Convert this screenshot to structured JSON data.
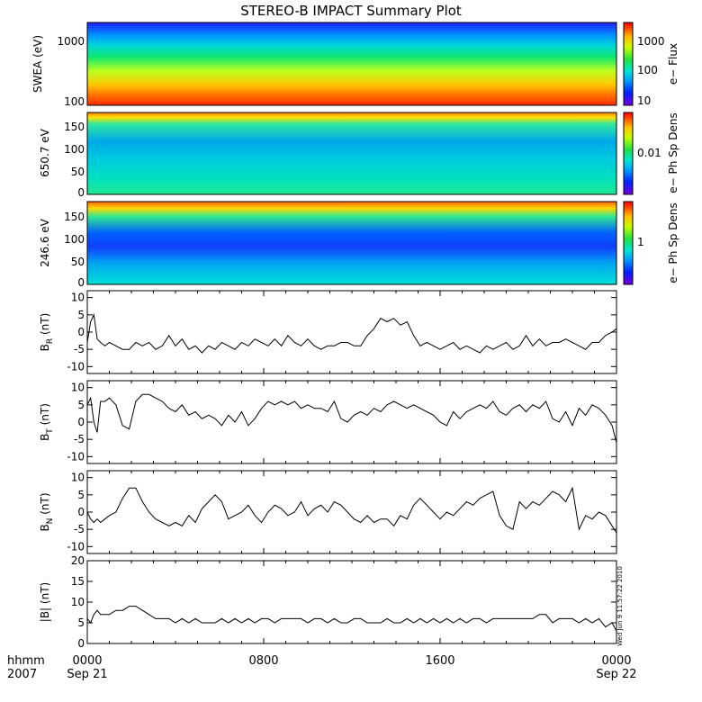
{
  "title": "STEREO-B IMPACT Summary Plot",
  "timestamp": "Wed Jun 9 11:57:22 2010",
  "time_axis": {
    "row1_label": "hhmm",
    "row2_label": "2007",
    "ticks": [
      {
        "hhmm": "0000",
        "date": "Sep 21"
      },
      {
        "hhmm": "0800",
        "date": ""
      },
      {
        "hhmm": "1600",
        "date": ""
      },
      {
        "hhmm": "0000",
        "date": "Sep 22"
      }
    ]
  },
  "chart_data": [
    {
      "type": "heatmap",
      "ylabel": "SWEA (eV)",
      "yscale": "log",
      "ylim": [
        100,
        2000
      ],
      "yticks": [
        "1000",
        "100"
      ],
      "colorbar": {
        "label": "e− Flux",
        "scale": "log",
        "ticks": [
          "1000",
          "100",
          "10"
        ]
      }
    },
    {
      "type": "heatmap",
      "ylabel": "650.7 eV",
      "ylim": [
        0,
        180
      ],
      "yticks": [
        "150",
        "100",
        "50",
        "0"
      ],
      "colorbar": {
        "label": "e− Ph Sp Dens",
        "scale": "log",
        "ticks": [
          "0.01"
        ]
      }
    },
    {
      "type": "heatmap",
      "ylabel": "246.6 eV",
      "ylim": [
        0,
        180
      ],
      "yticks": [
        "150",
        "100",
        "50",
        "0"
      ],
      "colorbar": {
        "label": "e− Ph Sp Dens",
        "scale": "log",
        "ticks": [
          "1"
        ]
      }
    },
    {
      "type": "line",
      "ylabel_main": "B",
      "ylabel_sub": "R",
      "ylabel_unit": " (nT)",
      "ylim": [
        -12,
        12
      ],
      "yticks": [
        10,
        5,
        0,
        -5,
        -10
      ],
      "xlim": [
        0,
        24
      ],
      "x": [
        0,
        0.15,
        0.3,
        0.45,
        0.6,
        0.8,
        1,
        1.3,
        1.6,
        1.9,
        2.2,
        2.5,
        2.8,
        3.1,
        3.4,
        3.7,
        4,
        4.3,
        4.6,
        4.9,
        5.2,
        5.5,
        5.8,
        6.1,
        6.4,
        6.7,
        7,
        7.3,
        7.6,
        7.9,
        8.2,
        8.5,
        8.8,
        9.1,
        9.4,
        9.7,
        10,
        10.3,
        10.6,
        10.9,
        11.2,
        11.5,
        11.8,
        12.1,
        12.4,
        12.7,
        13,
        13.3,
        13.6,
        13.9,
        14.2,
        14.5,
        14.8,
        15.1,
        15.4,
        15.7,
        16,
        16.3,
        16.6,
        16.9,
        17.2,
        17.5,
        17.8,
        18.1,
        18.4,
        18.7,
        19,
        19.3,
        19.6,
        19.9,
        20.2,
        20.5,
        20.8,
        21.1,
        21.4,
        21.7,
        22,
        22.3,
        22.6,
        22.9,
        23.2,
        23.5,
        23.8,
        24
      ],
      "y": [
        -3,
        3,
        5,
        -2,
        -3,
        -4,
        -3,
        -4,
        -5,
        -5,
        -3,
        -4,
        -3,
        -5,
        -4,
        -1,
        -4,
        -2,
        -5,
        -4,
        -6,
        -4,
        -5,
        -3,
        -4,
        -5,
        -3,
        -4,
        -2,
        -3,
        -4,
        -2,
        -4,
        -1,
        -3,
        -4,
        -2,
        -4,
        -5,
        -4,
        -4,
        -3,
        -3,
        -4,
        -4,
        -1,
        1,
        4,
        3,
        4,
        2,
        3,
        -1,
        -4,
        -3,
        -4,
        -5,
        -4,
        -3,
        -5,
        -4,
        -5,
        -6,
        -4,
        -5,
        -4,
        -3,
        -5,
        -4,
        -1,
        -4,
        -2,
        -4,
        -3,
        -3,
        -2,
        -3,
        -4,
        -5,
        -3,
        -3,
        -1,
        0,
        1
      ]
    },
    {
      "type": "line",
      "ylabel_main": "B",
      "ylabel_sub": "T",
      "ylabel_unit": " (nT)",
      "ylim": [
        -12,
        12
      ],
      "yticks": [
        10,
        5,
        0,
        -5,
        -10
      ],
      "xlim": [
        0,
        24
      ],
      "x": [
        0,
        0.15,
        0.3,
        0.45,
        0.6,
        0.8,
        1,
        1.3,
        1.6,
        1.9,
        2.2,
        2.5,
        2.8,
        3.1,
        3.4,
        3.7,
        4,
        4.3,
        4.6,
        4.9,
        5.2,
        5.5,
        5.8,
        6.1,
        6.4,
        6.7,
        7,
        7.3,
        7.6,
        7.9,
        8.2,
        8.5,
        8.8,
        9.1,
        9.4,
        9.7,
        10,
        10.3,
        10.6,
        10.9,
        11.2,
        11.5,
        11.8,
        12.1,
        12.4,
        12.7,
        13,
        13.3,
        13.6,
        13.9,
        14.2,
        14.5,
        14.8,
        15.1,
        15.4,
        15.7,
        16,
        16.3,
        16.6,
        16.9,
        17.2,
        17.5,
        17.8,
        18.1,
        18.4,
        18.7,
        19,
        19.3,
        19.6,
        19.9,
        20.2,
        20.5,
        20.8,
        21.1,
        21.4,
        21.7,
        22,
        22.3,
        22.6,
        22.9,
        23.2,
        23.5,
        23.8,
        24
      ],
      "y": [
        5,
        7,
        0,
        -3,
        6,
        6,
        7,
        5,
        -1,
        -2,
        6,
        8,
        8,
        7,
        6,
        4,
        3,
        5,
        2,
        3,
        1,
        2,
        1,
        -1,
        2,
        0,
        3,
        -1,
        1,
        4,
        6,
        5,
        6,
        5,
        6,
        4,
        5,
        4,
        4,
        3,
        6,
        1,
        0,
        2,
        3,
        2,
        4,
        3,
        5,
        6,
        5,
        4,
        5,
        4,
        3,
        2,
        0,
        -1,
        3,
        1,
        3,
        4,
        5,
        4,
        6,
        3,
        2,
        4,
        5,
        3,
        5,
        4,
        6,
        1,
        0,
        3,
        -1,
        4,
        2,
        5,
        4,
        2,
        -1,
        -6
      ]
    },
    {
      "type": "line",
      "ylabel_main": "B",
      "ylabel_sub": "N",
      "ylabel_unit": " (nT)",
      "ylim": [
        -12,
        12
      ],
      "yticks": [
        10,
        5,
        0,
        -5,
        -10
      ],
      "xlim": [
        0,
        24
      ],
      "x": [
        0,
        0.15,
        0.3,
        0.45,
        0.6,
        0.8,
        1,
        1.3,
        1.6,
        1.9,
        2.2,
        2.5,
        2.8,
        3.1,
        3.4,
        3.7,
        4,
        4.3,
        4.6,
        4.9,
        5.2,
        5.5,
        5.8,
        6.1,
        6.4,
        6.7,
        7,
        7.3,
        7.6,
        7.9,
        8.2,
        8.5,
        8.8,
        9.1,
        9.4,
        9.7,
        10,
        10.3,
        10.6,
        10.9,
        11.2,
        11.5,
        11.8,
        12.1,
        12.4,
        12.7,
        13,
        13.3,
        13.6,
        13.9,
        14.2,
        14.5,
        14.8,
        15.1,
        15.4,
        15.7,
        16,
        16.3,
        16.6,
        16.9,
        17.2,
        17.5,
        17.8,
        18.1,
        18.4,
        18.7,
        19,
        19.3,
        19.6,
        19.9,
        20.2,
        20.5,
        20.8,
        21.1,
        21.4,
        21.7,
        22,
        22.3,
        22.6,
        22.9,
        23.2,
        23.5,
        23.8,
        24
      ],
      "y": [
        0,
        -2,
        -3,
        -2,
        -3,
        -2,
        -1,
        0,
        4,
        7,
        7,
        3,
        0,
        -2,
        -3,
        -4,
        -3,
        -4,
        -1,
        -3,
        1,
        3,
        5,
        3,
        -2,
        -1,
        0,
        2,
        -1,
        -3,
        0,
        2,
        1,
        -1,
        0,
        3,
        -1,
        1,
        2,
        0,
        3,
        2,
        0,
        -2,
        -3,
        -1,
        -3,
        -2,
        -2,
        -4,
        -1,
        -2,
        2,
        4,
        2,
        0,
        -2,
        0,
        -1,
        1,
        3,
        2,
        4,
        5,
        6,
        -1,
        -4,
        -5,
        3,
        1,
        3,
        2,
        4,
        6,
        5,
        3,
        7,
        -5,
        -1,
        -2,
        0,
        -1,
        -4,
        -6
      ]
    },
    {
      "type": "line",
      "ylabel_main": "|B|",
      "ylabel_sub": "",
      "ylabel_unit": " (nT)",
      "ylim": [
        0,
        20
      ],
      "yticks": [
        20,
        15,
        10,
        5,
        0
      ],
      "xlim": [
        0,
        24
      ],
      "x": [
        0,
        0.15,
        0.3,
        0.45,
        0.6,
        0.8,
        1,
        1.3,
        1.6,
        1.9,
        2.2,
        2.5,
        2.8,
        3.1,
        3.4,
        3.7,
        4,
        4.3,
        4.6,
        4.9,
        5.2,
        5.5,
        5.8,
        6.1,
        6.4,
        6.7,
        7,
        7.3,
        7.6,
        7.9,
        8.2,
        8.5,
        8.8,
        9.1,
        9.4,
        9.7,
        10,
        10.3,
        10.6,
        10.9,
        11.2,
        11.5,
        11.8,
        12.1,
        12.4,
        12.7,
        13,
        13.3,
        13.6,
        13.9,
        14.2,
        14.5,
        14.8,
        15.1,
        15.4,
        15.7,
        16,
        16.3,
        16.6,
        16.9,
        17.2,
        17.5,
        17.8,
        18.1,
        18.4,
        18.7,
        19,
        19.3,
        19.6,
        19.9,
        20.2,
        20.5,
        20.8,
        21.1,
        21.4,
        21.7,
        22,
        22.3,
        22.6,
        22.9,
        23.2,
        23.5,
        23.8,
        24
      ],
      "y": [
        6,
        5,
        7,
        8,
        7,
        7,
        7,
        8,
        8,
        9,
        9,
        8,
        7,
        6,
        6,
        6,
        5,
        6,
        5,
        6,
        5,
        5,
        5,
        6,
        5,
        6,
        5,
        6,
        5,
        6,
        6,
        5,
        6,
        6,
        6,
        6,
        5,
        6,
        6,
        5,
        6,
        5,
        5,
        6,
        6,
        5,
        5,
        5,
        6,
        5,
        5,
        6,
        5,
        6,
        5,
        6,
        5,
        6,
        5,
        6,
        5,
        6,
        6,
        5,
        6,
        6,
        6,
        6,
        6,
        6,
        6,
        7,
        7,
        5,
        6,
        6,
        6,
        5,
        6,
        5,
        6,
        4,
        5,
        3
      ]
    }
  ]
}
